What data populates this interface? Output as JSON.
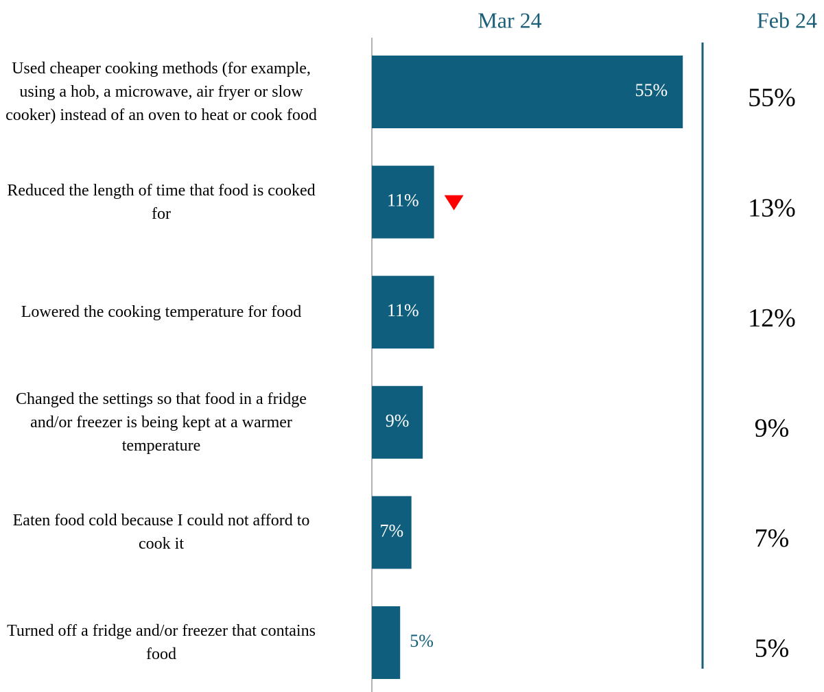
{
  "chart_data": {
    "type": "bar",
    "orientation": "horizontal",
    "categories": [
      "Used cheaper cooking methods (for example, using a hob, a microwave, air fryer or slow cooker) instead of an oven to heat or cook food",
      "Reduced the length of time that food is cooked for",
      "Lowered the cooking temperature for food",
      "Changed the settings so that food in a fridge and/or freezer is being kept at a warmer temperature",
      "Eaten food cold because I could not afford to cook it",
      "Turned off a fridge and/or freezer that contains food"
    ],
    "series": [
      {
        "name": "Mar 24",
        "color": "#0f5e7d",
        "values": [
          55,
          11,
          11,
          9,
          7,
          5
        ],
        "value_labels": [
          "55%",
          "11%",
          "11%",
          "9%",
          "7%",
          "5%"
        ],
        "markers": [
          null,
          "down",
          null,
          null,
          null,
          null
        ],
        "marker_color": "#ff0000"
      },
      {
        "name": "Feb 24",
        "color": "#000000",
        "values": [
          55,
          13,
          12,
          9,
          7,
          5
        ],
        "value_labels": [
          "55%",
          "13%",
          "12%",
          "9%",
          "7%",
          "5%"
        ]
      }
    ]
  }
}
